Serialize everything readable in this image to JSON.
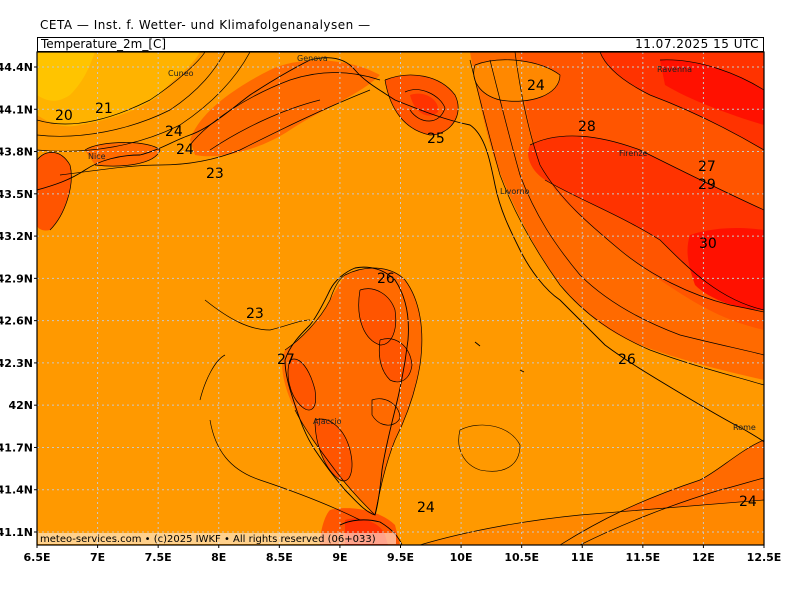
{
  "header": {
    "organization": "CETA — Inst. f. Wetter- und Klimafolgenanalysen —",
    "variable": "Temperature_2m_[C]",
    "valid_time": "11.07.2025 15 UTC"
  },
  "footer": "meteo-services.com • (c)2025 IWKF • All rights reserved (06+033)",
  "axes": {
    "lat_labels": [
      "44.4N",
      "44.1N",
      "43.8N",
      "43.5N",
      "43.2N",
      "42.9N",
      "42.6N",
      "42.3N",
      "42N",
      "41.7N",
      "41.4N",
      "41.1N"
    ],
    "lon_labels": [
      "6.5E",
      "7E",
      "7.5E",
      "8E",
      "8.5E",
      "9E",
      "9.5E",
      "10E",
      "10.5E",
      "11E",
      "11.5E",
      "12E",
      "12.5E"
    ]
  },
  "cities": [
    "Cuneo",
    "Genova",
    "Nice",
    "Livorno",
    "Firenze",
    "Ravenna",
    "Ajaccio",
    "Rome"
  ],
  "isotherm_labels": [
    "20",
    "21",
    "24",
    "24",
    "23",
    "24",
    "25",
    "28",
    "27",
    "29",
    "30",
    "26",
    "23",
    "27",
    "26",
    "24",
    "24"
  ],
  "colors": {
    "t20": "#ffb300",
    "t23": "#ff9900",
    "t24": "#ff8800",
    "t25": "#ff6a00",
    "t26": "#ff5500",
    "t28": "#ff3300",
    "t30": "#ff1100",
    "grid": "#bdbdbd"
  }
}
